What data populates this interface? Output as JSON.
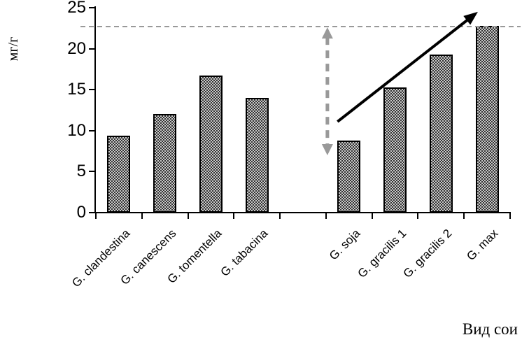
{
  "chart_data": {
    "type": "bar",
    "title": "",
    "ylabel": "мг/г",
    "xlabel": "Вид сои",
    "ylim": [
      0,
      25
    ],
    "yticks": [
      0,
      5,
      10,
      15,
      20,
      25
    ],
    "categories": [
      "G. clandestina",
      "G. canescens",
      "G. tomentella",
      "G. tabacina",
      "",
      "G. soja",
      "G. gracilis 1",
      "G. gracilis 2",
      "G. max"
    ],
    "values": [
      9.4,
      12.0,
      16.7,
      14.0,
      null,
      8.8,
      15.3,
      19.3,
      22.8
    ],
    "grid": false,
    "legend": null,
    "bar_fill": "gray checkerboard dither pattern with black border",
    "annotations": {
      "dashed_reference_line": {
        "value": 22.7,
        "color": "#999999",
        "style": "dashed",
        "note": "horizontal gray dashed line at level of G. max bar"
      },
      "vertical_double_arrow": {
        "at_boundary": 5,
        "from_value": 22.6,
        "to_value": 7.0,
        "color": "#999999",
        "style": "dashed",
        "note": "gray dashed double-headed vertical arrow left of G. soja bar"
      },
      "trend_arrow": {
        "from_slot": 5.25,
        "from_value": 11.1,
        "to_slot": 8.3,
        "to_value": 24.5,
        "color": "#000000",
        "style": "solid",
        "note": "black rising arrow over G. soja to G. max bars"
      }
    }
  },
  "colors": {
    "axis": "#000000",
    "bar_border": "#000000",
    "bar_pattern_dark": "#333333",
    "bar_pattern_light": "#c9c9c9",
    "annotation_gray": "#999999",
    "trend_arrow": "#000000",
    "background": "#ffffff"
  }
}
